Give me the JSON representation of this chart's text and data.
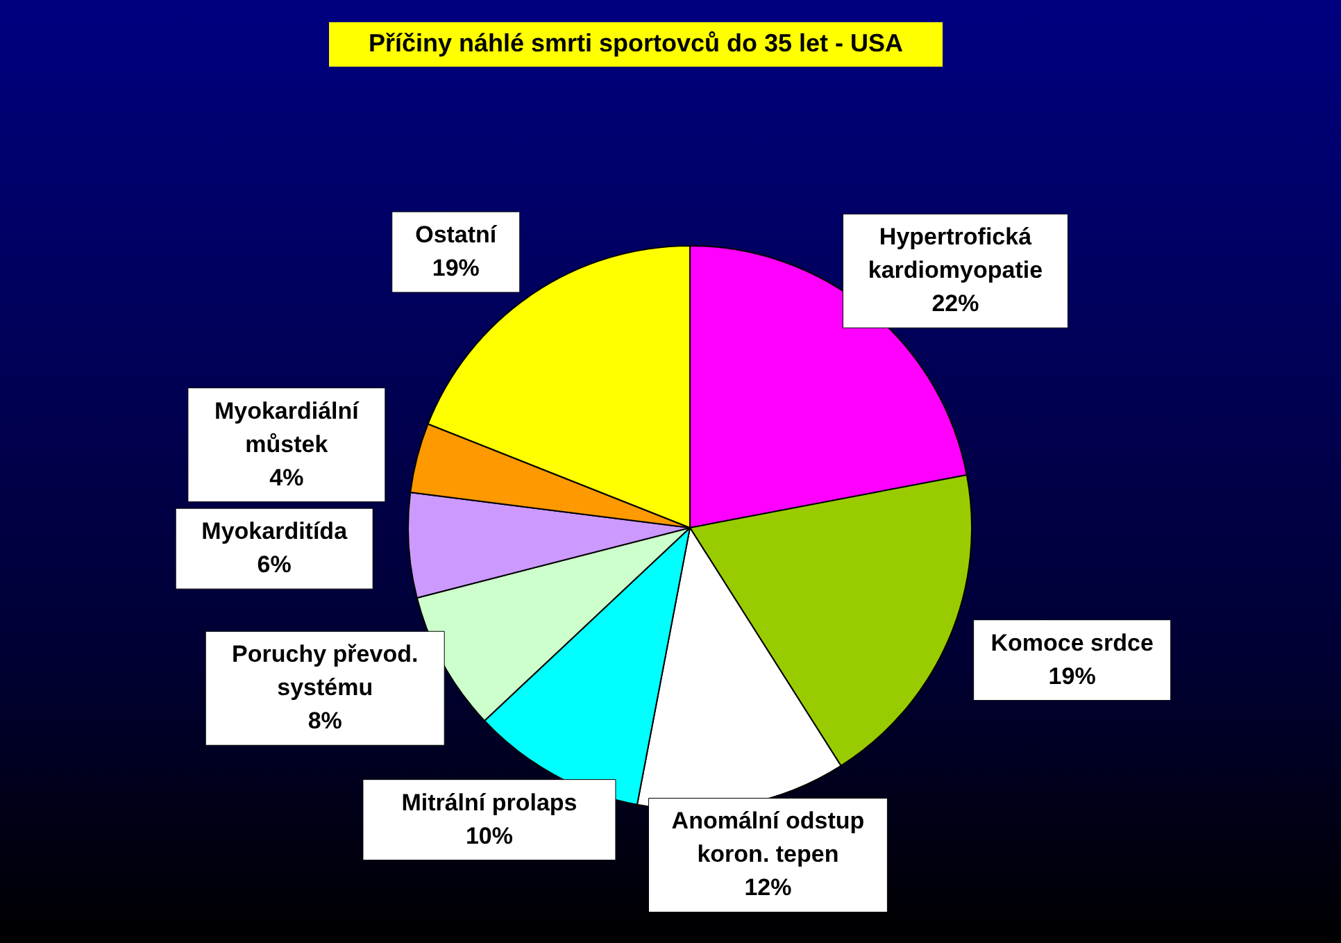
{
  "chart_data": {
    "type": "pie",
    "title": "Příčiny náhlé smrti sportovců do 35 let - USA",
    "categories": [
      "Hypertrofická\nkardiomyopatie",
      "Komoce srdce",
      "Anomální odstup\nkoron. tepen",
      "Mitrální prolaps",
      "Poruchy převod.\nsystému",
      "Myokarditída",
      "Myokardiální\nmůstek",
      "Ostatní"
    ],
    "values": [
      22,
      19,
      12,
      10,
      8,
      6,
      4,
      19
    ],
    "value_labels": [
      "22%",
      "19%",
      "12%",
      "10%",
      "8%",
      "6%",
      "4%",
      "19%"
    ],
    "colors": [
      "#ff00ff",
      "#99cc00",
      "#ffffff",
      "#00ffff",
      "#ccffcc",
      "#cc99ff",
      "#ff9900",
      "#ffff00"
    ]
  }
}
